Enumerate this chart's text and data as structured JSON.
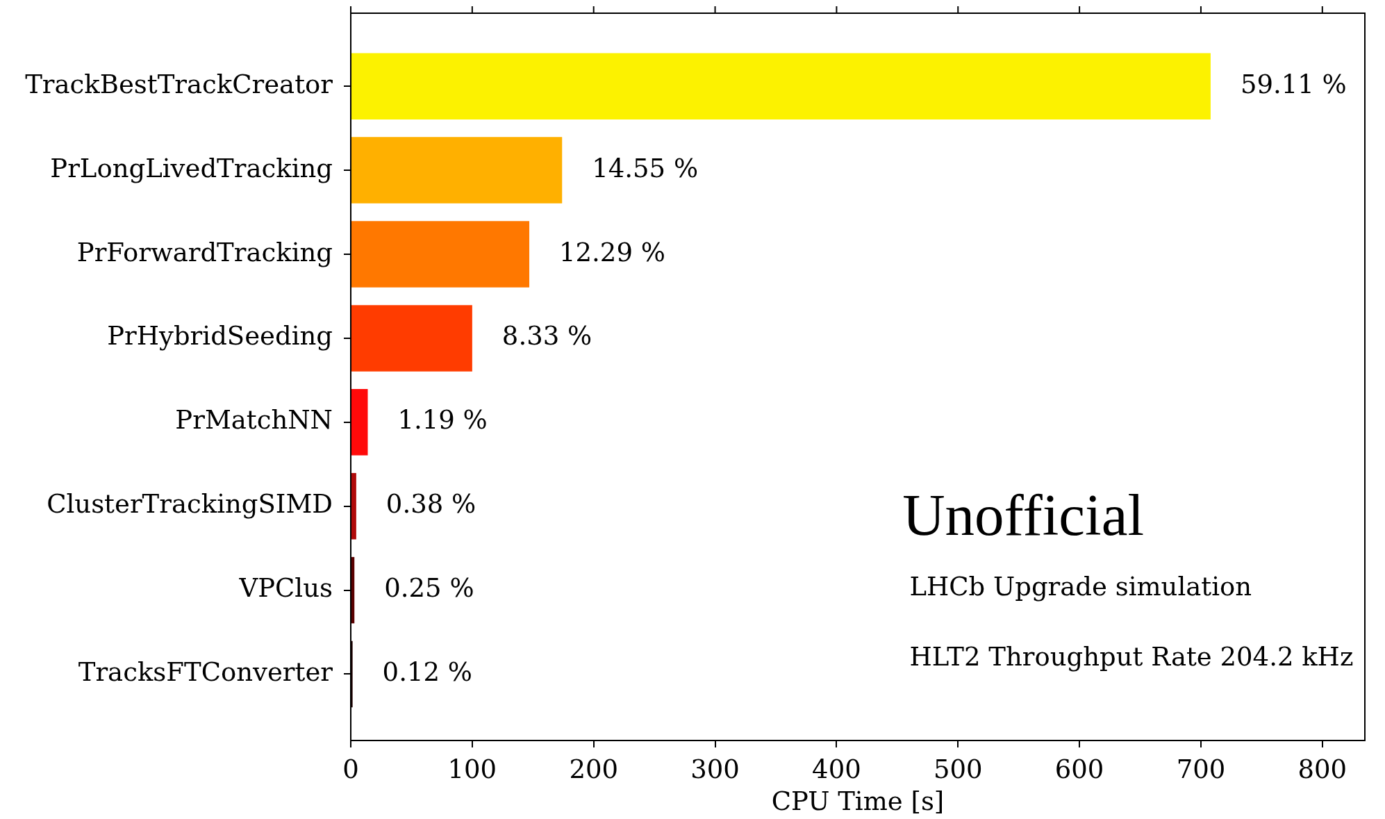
{
  "chart_data": {
    "type": "bar",
    "orientation": "horizontal",
    "xlabel": "CPU Time [s]",
    "categories": [
      "TrackBestTrackCreator",
      "PrLongLivedTracking",
      "PrForwardTracking",
      "PrHybridSeeding",
      "PrMatchNN",
      "ClusterTrackingSIMD",
      "VPClus",
      "TracksFTConverter"
    ],
    "values": [
      708,
      174,
      147,
      100,
      14,
      4.5,
      3,
      1.5
    ],
    "colors": [
      "#fcf200",
      "#ffb000",
      "#ff7800",
      "#ff3c00",
      "#ff0a0a",
      "#b00a0a",
      "#5a0000",
      "#1e0000"
    ],
    "xlim": [
      0,
      835
    ],
    "xticks": [
      0,
      100,
      200,
      300,
      400,
      500,
      600,
      700,
      800
    ],
    "annotations": [
      {
        "text": "59.11 %",
        "x": 708,
        "y": "TrackBestTrackCreator"
      },
      {
        "text": "14.55 %",
        "x": 174,
        "y": "PrLongLivedTracking"
      },
      {
        "text": "12.29 %",
        "x": 147,
        "y": "PrForwardTracking"
      },
      {
        "text": "8.33 %",
        "x": 100,
        "y": "PrHybridSeeding"
      },
      {
        "text": "1.19 %",
        "x": 14,
        "y": "PrMatchNN"
      },
      {
        "text": "0.38 %",
        "x": 4.5,
        "y": "ClusterTrackingSIMD"
      },
      {
        "text": "0.25 %",
        "x": 3,
        "y": "VPClus"
      },
      {
        "text": "0.12 %",
        "x": 1.5,
        "y": "TracksFTConverter"
      },
      "Unofficial",
      "LHCb Upgrade simulation",
      "HLT2 Throughput Rate 204.2 kHz"
    ]
  }
}
